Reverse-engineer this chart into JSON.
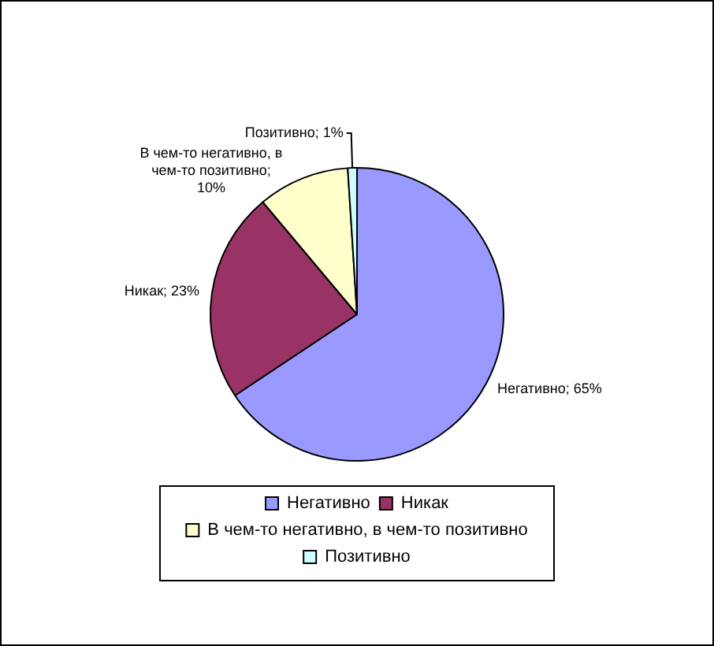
{
  "chart_data": {
    "type": "pie",
    "categories": [
      "Негативно",
      "Никак",
      "В чем-то негативно, в чем-то позитивно",
      "Позитивно"
    ],
    "values": [
      65,
      23,
      10,
      1
    ],
    "colors": [
      "#9999ff",
      "#993366",
      "#ffffcc",
      "#ccffff"
    ],
    "value_labels": [
      "Негативно; 65%",
      "Никак; 23%",
      "В чем-то негативно, в чем-то позитивно; 10%",
      "Позитивно; 1%"
    ],
    "legend": "bottom"
  }
}
